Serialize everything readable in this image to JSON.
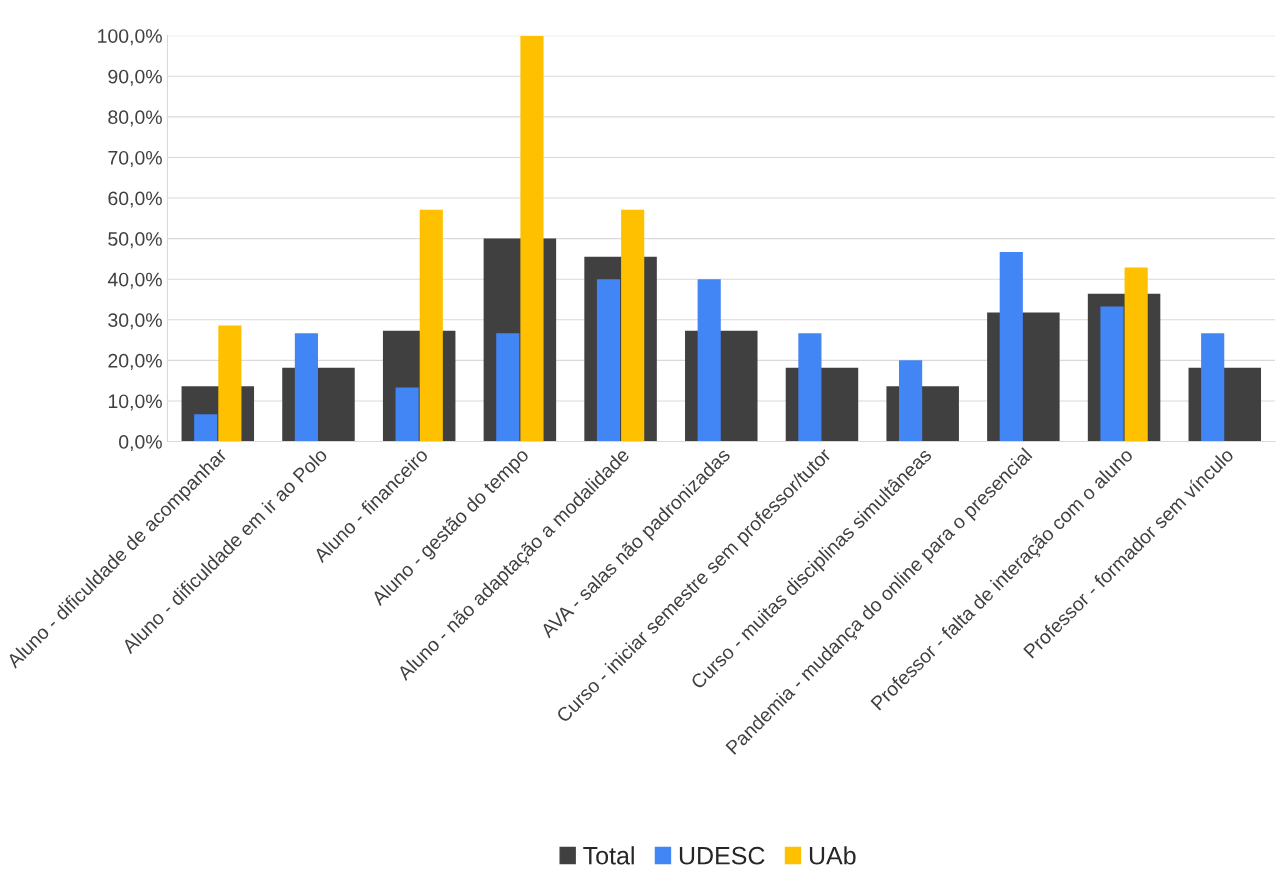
{
  "chart_data": {
    "type": "bar",
    "categories": [
      "Aluno - dificuldade de acompanhar",
      "Aluno - dificuldade em ir ao Polo",
      "Aluno - financeiro",
      "Aluno - gestão do tempo",
      "Aluno - não adaptação a modalidade",
      "AVA - salas não padronizadas",
      "Curso - iniciar semestre sem professor/tutor",
      "Curso - muitas disciplinas simultâneas",
      "Pandemia - mudança do online para o presencial",
      "Professor - falta de interação com o aluno",
      "Professor - formador sem vínculo"
    ],
    "series": [
      {
        "name": "Total",
        "color": "#404040",
        "values": [
          13.6,
          18.2,
          27.3,
          50.0,
          45.5,
          27.3,
          18.2,
          13.6,
          31.8,
          36.4,
          18.2
        ]
      },
      {
        "name": "UDESC",
        "color": "#4285f4",
        "values": [
          6.7,
          26.7,
          13.3,
          26.7,
          40.0,
          40.0,
          26.7,
          20.0,
          46.7,
          33.3,
          26.7
        ]
      },
      {
        "name": "UAb",
        "color": "#ffc000",
        "values": [
          28.6,
          null,
          57.1,
          100.0,
          57.1,
          null,
          null,
          null,
          null,
          42.9,
          null
        ]
      }
    ],
    "ylim": [
      0,
      100
    ],
    "yticks": [
      {
        "value": 0,
        "label": "0,0%"
      },
      {
        "value": 10,
        "label": "10,0%"
      },
      {
        "value": 20,
        "label": "20,0%"
      },
      {
        "value": 30,
        "label": "30,0%"
      },
      {
        "value": 40,
        "label": "40,0%"
      },
      {
        "value": 50,
        "label": "50,0%"
      },
      {
        "value": 60,
        "label": "60,0%"
      },
      {
        "value": 70,
        "label": "70,0%"
      },
      {
        "value": 80,
        "label": "80,0%"
      },
      {
        "value": 90,
        "label": "90,0%"
      },
      {
        "value": 100,
        "label": "100,0%"
      }
    ],
    "grid": "y",
    "legend": "bottom"
  }
}
